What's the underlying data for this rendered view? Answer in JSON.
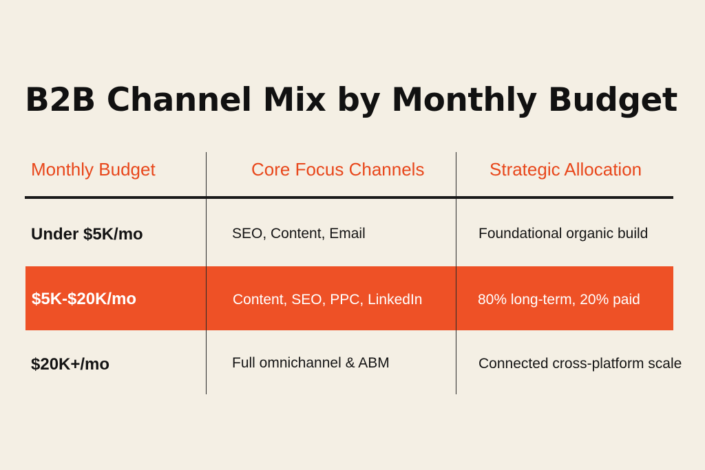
{
  "title": "B2B Channel Mix by Monthly Budget",
  "colors": {
    "background": "#f4efe4",
    "accent": "#ee5126",
    "header_text": "#e8471b",
    "text": "#141414"
  },
  "headers": {
    "budget": "Monthly Budget",
    "channels": "Core Focus Channels",
    "allocation": "Strategic Allocation"
  },
  "rows": [
    {
      "budget": "Under $5K/mo",
      "channels": "SEO, Content, Email",
      "allocation": "Foundational organic build",
      "highlighted": false
    },
    {
      "budget": "$5K-$20K/mo",
      "channels": "Content, SEO, PPC, LinkedIn",
      "allocation": "80% long-term, 20% paid",
      "highlighted": true
    },
    {
      "budget": "$20K+/mo",
      "channels": "Full omnichannel & ABM",
      "allocation": "Connected cross-platform scale",
      "highlighted": false
    }
  ]
}
